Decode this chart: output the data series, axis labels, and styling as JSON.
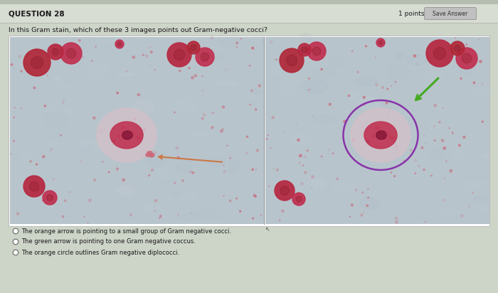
{
  "bg_color": "#cdd4c8",
  "header_line_color": "#b0b8aa",
  "title_text": "QUESTION 28",
  "title_fontsize": 7.5,
  "points_text": "1 points",
  "save_btn_text": "Save Answer",
  "question_text": "In this Gram stain, which of these 3 images points out Gram-negative cocci?",
  "question_fontsize": 6.8,
  "options": [
    "The orange arrow is pointing to a small group of Gram negative cocci.",
    "The green arrow is pointing to one Gram negative coccus.",
    "The orange circle outlines Gram negative diplococci."
  ],
  "option_fontsize": 6.0,
  "micro_bg_color": "#b8c4cc",
  "micro_bg_color2": "#c2cdd4",
  "rbc_color": "#b82840",
  "rbc_color2": "#cc3850",
  "wbc_body_color": "#d8c0c8",
  "wbc_nucleus_color": "#c03050",
  "orange_arrow_color": "#cc7744",
  "green_arrow_color": "#44aa22",
  "purple_circle_color": "#8833aa",
  "save_btn_color": "#c0c0c0",
  "save_btn_border": "#999999",
  "white": "#ffffff",
  "panel_border": "#aaaaaa",
  "option_circle_color": "#555555",
  "top_stripe_color": "#b5bdb0",
  "header_bg_color": "#d8ddd4"
}
